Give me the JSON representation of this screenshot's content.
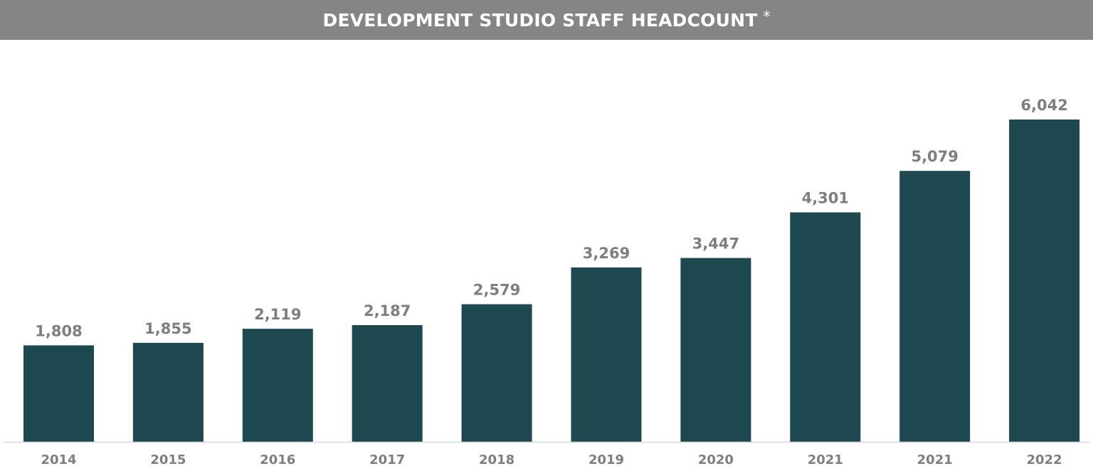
{
  "header": {
    "title": "DEVELOPMENT STUDIO STAFF HEADCOUNT",
    "title_mark": "*"
  },
  "colors": {
    "header_background": "#858585",
    "bar": "#1e4850",
    "label": "#7e7e7e",
    "baseline": "#d4d8dc"
  },
  "chart_data": {
    "type": "bar",
    "title": "DEVELOPMENT STUDIO STAFF HEADCOUNT",
    "categories": [
      "2014",
      "2015",
      "2016",
      "2017",
      "2018",
      "2019",
      "2020",
      "2021",
      "2021",
      "2022"
    ],
    "values": [
      1808,
      1855,
      2119,
      2187,
      2579,
      3269,
      3447,
      4301,
      5079,
      6042
    ],
    "value_labels": [
      "1,808",
      "1,855",
      "2,119",
      "2,187",
      "2,579",
      "3,269",
      "3,447",
      "4,301",
      "5,079",
      "6,042"
    ],
    "xlabel": "",
    "ylabel": "",
    "ylim": [
      0,
      6042
    ],
    "grid": false,
    "legend": "none"
  }
}
